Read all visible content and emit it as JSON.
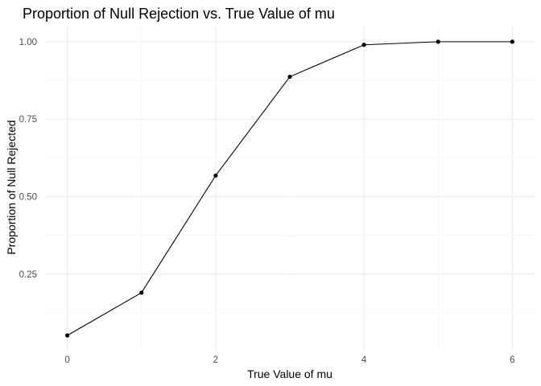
{
  "chart_data": {
    "type": "line",
    "title": "Proportion of Null Rejection vs. True Value of mu",
    "xlabel": "True Value of mu",
    "ylabel": "Proportion of Null Rejected",
    "x": [
      0,
      1,
      2,
      3,
      4,
      5,
      6
    ],
    "series": [
      {
        "values": [
          0.052,
          0.19,
          0.568,
          0.887,
          0.99,
          1.0,
          1.0
        ]
      }
    ],
    "xlim": [
      -0.3,
      6.3
    ],
    "ylim": [
      0.003,
      1.049
    ],
    "xticks": [
      "0",
      "2",
      "4",
      "6"
    ],
    "yticks": [
      "0.25",
      "0.50",
      "0.75",
      "1.00"
    ],
    "grid": true,
    "markers": true,
    "colors": {
      "line": "#000000",
      "points": "#000000",
      "grid": "#ebebeb"
    }
  }
}
